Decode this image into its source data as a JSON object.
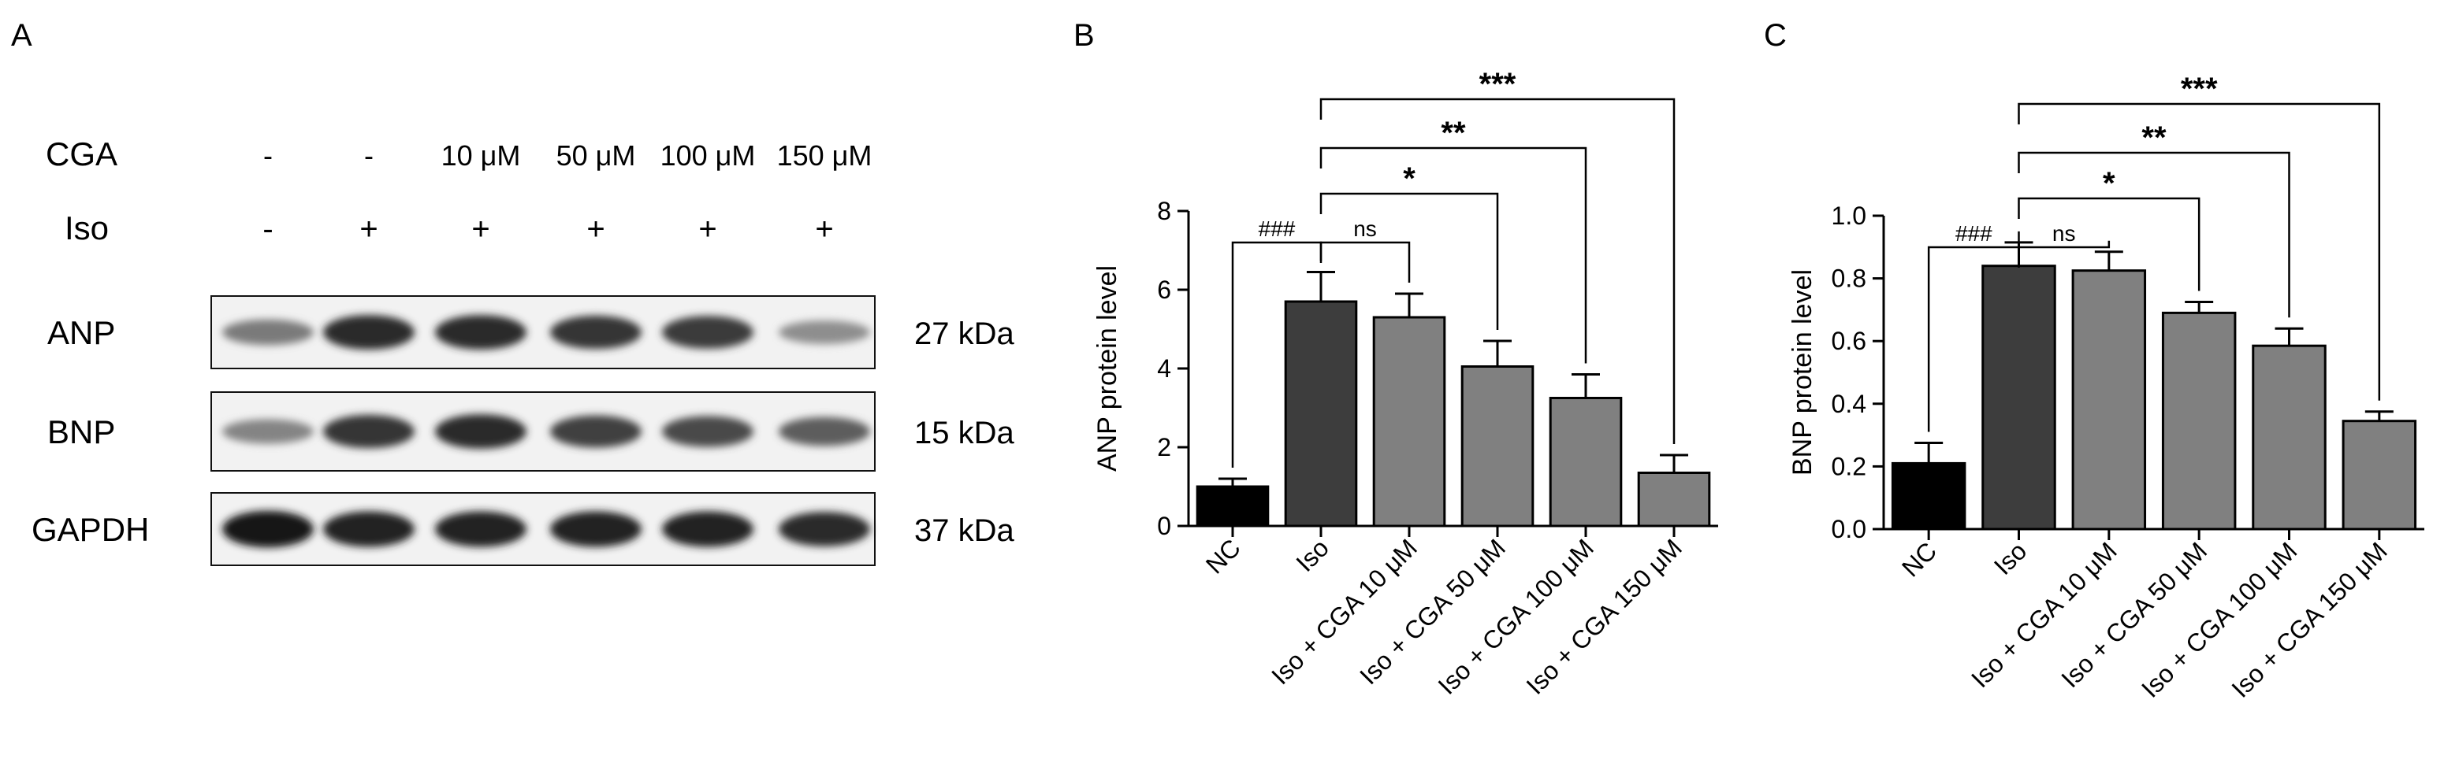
{
  "panels": {
    "a": {
      "letter": "A"
    },
    "b": {
      "letter": "B"
    },
    "c": {
      "letter": "C"
    }
  },
  "blot": {
    "row_labels": {
      "cga": "CGA",
      "iso": "Iso"
    },
    "cga_values": [
      "-",
      "-",
      "10 μM",
      "50 μM",
      "100 μM",
      "150 μM"
    ],
    "iso_values": [
      "-",
      "+",
      "+",
      "+",
      "+",
      "+"
    ],
    "bands": [
      {
        "protein": "ANP",
        "size": "27 kDa",
        "intensities": [
          0.45,
          0.85,
          0.85,
          0.8,
          0.78,
          0.35
        ]
      },
      {
        "protein": "BNP",
        "size": "15 kDa",
        "intensities": [
          0.4,
          0.8,
          0.85,
          0.75,
          0.7,
          0.6
        ]
      },
      {
        "protein": "GAPDH",
        "size": "37 kDa",
        "intensities": [
          0.95,
          0.9,
          0.9,
          0.9,
          0.9,
          0.85
        ]
      }
    ]
  },
  "chart_data": [
    {
      "type": "bar",
      "panel": "B",
      "title": "",
      "xlabel": "",
      "ylabel": "ANP protein level",
      "ylim": [
        0,
        8
      ],
      "yticks": [
        0,
        2,
        4,
        6,
        8
      ],
      "ytick_labels": [
        "0",
        "2",
        "4",
        "6",
        "8"
      ],
      "categories": [
        "NC",
        "Iso",
        "Iso + CGA 10 μM",
        "Iso + CGA 50 μM",
        "Iso + CGA 100 μM",
        "Iso + CGA 150 μM"
      ],
      "values": [
        1.0,
        5.7,
        5.3,
        4.05,
        3.25,
        1.35
      ],
      "errors": [
        0.2,
        0.75,
        0.6,
        0.65,
        0.6,
        0.45
      ],
      "colors": [
        "#000000",
        "#3d3d3d",
        "#808080",
        "#808080",
        "#808080",
        "#808080"
      ],
      "comparisons": [
        {
          "from": 0,
          "to": 1,
          "label": "###"
        },
        {
          "from": 1,
          "to": 2,
          "label": "ns"
        },
        {
          "from": 1,
          "to": 3,
          "label": "*"
        },
        {
          "from": 1,
          "to": 4,
          "label": "**"
        },
        {
          "from": 1,
          "to": 5,
          "label": "***"
        }
      ]
    },
    {
      "type": "bar",
      "panel": "C",
      "title": "",
      "xlabel": "",
      "ylabel": "BNP protein level",
      "ylim": [
        0,
        1.0
      ],
      "yticks": [
        0,
        0.2,
        0.4,
        0.6,
        0.8,
        1.0
      ],
      "ytick_labels": [
        "0.0",
        "0.2",
        "0.4",
        "0.6",
        "0.8",
        "1.0"
      ],
      "categories": [
        "NC",
        "Iso",
        "Iso + CGA 10 μM",
        "Iso + CGA 50 μM",
        "Iso + CGA 100 μM",
        "Iso + CGA 150 μM"
      ],
      "values": [
        0.21,
        0.84,
        0.825,
        0.69,
        0.585,
        0.345
      ],
      "errors": [
        0.065,
        0.075,
        0.06,
        0.035,
        0.055,
        0.03
      ],
      "colors": [
        "#000000",
        "#3d3d3d",
        "#808080",
        "#808080",
        "#808080",
        "#808080"
      ],
      "comparisons": [
        {
          "from": 0,
          "to": 1,
          "label": "###"
        },
        {
          "from": 1,
          "to": 2,
          "label": "ns"
        },
        {
          "from": 1,
          "to": 3,
          "label": "*"
        },
        {
          "from": 1,
          "to": 4,
          "label": "**"
        },
        {
          "from": 1,
          "to": 5,
          "label": "***"
        }
      ]
    }
  ]
}
